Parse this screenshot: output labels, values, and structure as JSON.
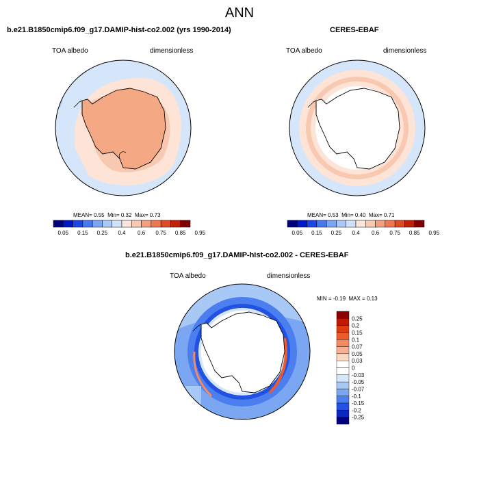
{
  "title": "ANN",
  "panels": [
    {
      "title": "b.e21.B1850cmip6.f09_g17.DAMIP-hist-co2.002 (yrs 1990-2014)",
      "left_label": "TOA albedo",
      "right_label": "dimensionless",
      "stats": {
        "mean_label": "MEAN=",
        "mean": "0.55",
        "min_label": "Min=",
        "min": "0.32",
        "max_label": "Max=",
        "max": "0.73"
      }
    },
    {
      "title": "CERES-EBAF",
      "left_label": "TOA albedo",
      "right_label": "dimensionless",
      "stats": {
        "mean_label": "MEAN=",
        "mean": "0.53",
        "min_label": "Min=",
        "min": "0.40",
        "max_label": "Max=",
        "max": "0.71"
      }
    },
    {
      "title": "b.e21.B1850cmip6.f09_g17.DAMIP-hist-co2.002 - CERES-EBAF",
      "left_label": "TOA albedo",
      "right_label": "dimensionless",
      "stats": {
        "min_label": "MIN =",
        "min": "-0.19",
        "max_label": "MAX =",
        "max": "0.13"
      }
    }
  ],
  "colorbar_main": {
    "labels": [
      "0.05",
      "0.15",
      "0.25",
      "0.4",
      "0.6",
      "0.75",
      "0.85",
      "0.95"
    ],
    "colors": [
      "#00007f",
      "#0019c8",
      "#1e46e6",
      "#4678f0",
      "#7aa6f5",
      "#a9c8f7",
      "#d0e2fa",
      "#fbe6dc",
      "#f8c8b0",
      "#f4a080",
      "#ef7850",
      "#e04a24",
      "#c02008",
      "#7f0000"
    ]
  },
  "colorbar_diff": {
    "labels": [
      "0.25",
      "0.2",
      "0.15",
      "0.1",
      "0.07",
      "0.05",
      "0.03",
      "0",
      "-0.03",
      "-0.05",
      "-0.07",
      "-0.1",
      "-0.15",
      "-0.2",
      "-0.25"
    ],
    "colors": [
      "#8b0000",
      "#c01a00",
      "#e03a10",
      "#ef5a2a",
      "#f58a60",
      "#f8b090",
      "#fad8c6",
      "#ffffff",
      "#d6e6fb",
      "#a8c8f6",
      "#7aa6f2",
      "#4b7eee",
      "#2252e4",
      "#0a28c0",
      "#00007f"
    ]
  }
}
